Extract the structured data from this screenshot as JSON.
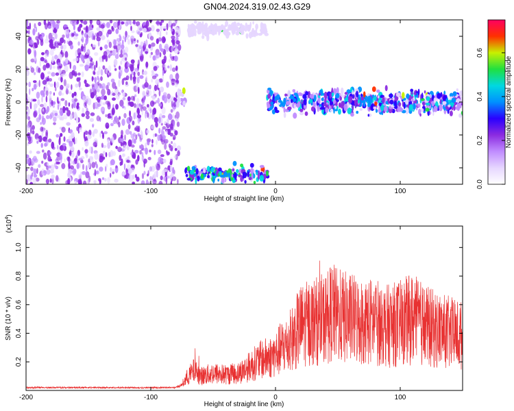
{
  "title": "GN04.2024.319.02.43.G29",
  "colors": {
    "snr_line": "#e83232",
    "colormap": [
      "#ffffff",
      "#e6d6ff",
      "#c08cff",
      "#8b2be0",
      "#2a00ff",
      "#0090ff",
      "#00d8e0",
      "#20e040",
      "#c8f000",
      "#ff3000",
      "#ff0060"
    ]
  },
  "chart_data": [
    {
      "type": "heatmap",
      "xlabel": "Height of straight line (km)",
      "ylabel": "Frequency (Hz)",
      "xlim": [
        -200,
        150
      ],
      "ylim": [
        -50,
        50
      ],
      "x_ticks": [
        -200,
        -100,
        0,
        100
      ],
      "y_ticks": [
        -40,
        -20,
        0,
        20,
        40
      ],
      "colorbar": {
        "label": "Normalized spectral amplitude",
        "range": [
          0.0,
          0.75
        ],
        "ticks": [
          0.0,
          0.2,
          0.4,
          0.6
        ]
      },
      "regions": [
        {
          "x_range": [
            -200,
            -77
          ],
          "freq_range": [
            -50,
            50
          ],
          "amplitude": 0.04,
          "pattern": "noise"
        },
        {
          "x_range": [
            -80,
            -72
          ],
          "freq_range": [
            -5,
            10
          ],
          "amplitude": 0.12,
          "pattern": "band"
        },
        {
          "x_range": [
            -70,
            -7
          ],
          "freq_range": [
            38,
            50
          ],
          "amplitude": 0.05,
          "pattern": "band"
        },
        {
          "x_range": [
            -72,
            -6
          ],
          "freq_range": [
            -50,
            -37
          ],
          "amplitude": 0.3,
          "pattern": "band"
        },
        {
          "x_range": [
            -8,
            150
          ],
          "freq_range": [
            -10,
            10
          ],
          "amplitude": 0.25,
          "pattern": "band"
        }
      ]
    },
    {
      "type": "line",
      "xlabel": "Height of straight line (km)",
      "ylabel": "SNR (10 * v/v)",
      "y_exponent": "(x10",
      "y_exponent_power": "4",
      "y_exponent_close": ")",
      "xlim": [
        -200,
        150
      ],
      "ylim": [
        0,
        1.15
      ],
      "x_ticks": [
        -200,
        -100,
        0,
        100
      ],
      "y_ticks": [
        0.2,
        0.4,
        0.6,
        0.8,
        1.0
      ],
      "series": [
        {
          "x": [
            -200,
            -180,
            -160,
            -140,
            -120,
            -100,
            -80,
            -75,
            -70,
            -65,
            -60,
            -50,
            -40,
            -30,
            -20,
            -15,
            -10,
            -5,
            0,
            5,
            10,
            15,
            20,
            30,
            40,
            45,
            50,
            60,
            70,
            80,
            90,
            100,
            110,
            120,
            130,
            140,
            150
          ],
          "y": [
            0.02,
            0.02,
            0.02,
            0.02,
            0.02,
            0.02,
            0.02,
            0.04,
            0.1,
            0.14,
            0.1,
            0.12,
            0.11,
            0.12,
            0.17,
            0.2,
            0.22,
            0.23,
            0.25,
            0.3,
            0.32,
            0.38,
            0.45,
            0.48,
            0.5,
            0.55,
            0.52,
            0.5,
            0.48,
            0.48,
            0.45,
            0.47,
            0.5,
            0.45,
            0.42,
            0.4,
            0.38
          ]
        }
      ]
    }
  ]
}
